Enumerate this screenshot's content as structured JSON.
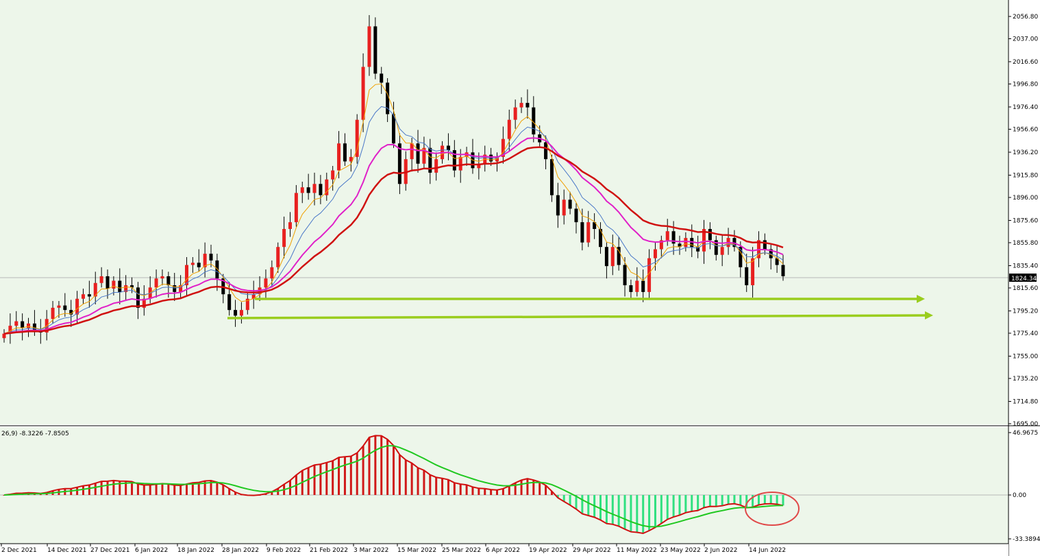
{
  "chart_data": [
    {
      "type": "candlestick",
      "ylim": [
        1695.0,
        2066.0
      ],
      "price_axis_ticks": [
        "2056.80",
        "2037.00",
        "2016.60",
        "1996.80",
        "1976.40",
        "1956.60",
        "1936.20",
        "1915.80",
        "1896.00",
        "1875.60",
        "1855.80",
        "1835.40",
        "1815.60",
        "1795.20",
        "1775.40",
        "1755.00",
        "1735.20",
        "1714.80",
        "1695.00"
      ],
      "price_axis_values": [
        2056.8,
        2037.0,
        2016.6,
        1996.8,
        1976.4,
        1956.6,
        1936.2,
        1915.8,
        1896.0,
        1875.6,
        1855.8,
        1835.4,
        1815.6,
        1795.2,
        1775.4,
        1755.0,
        1735.2,
        1714.8,
        1695.0
      ],
      "time_axis_labels": [
        "2 Dec 2021",
        "14 Dec 2021",
        "27 Dec 2021",
        "6 Jan 2022",
        "18 Jan 2022",
        "28 Jan 2022",
        "9 Feb 2022",
        "21 Feb 2022",
        "3 Mar 2022",
        "15 Mar 2022",
        "25 Mar 2022",
        "6 Apr 2022",
        "19 Apr 2022",
        "29 Apr 2022",
        "11 May 2022",
        "23 May 2022",
        "2 Jun 2022",
        "14 Jun 2022"
      ],
      "current_price": "1824.34",
      "current_price_value": 1824.34,
      "closes": [
        1775,
        1782,
        1786,
        1780,
        1784,
        1778,
        1776,
        1788,
        1798,
        1800,
        1796,
        1792,
        1806,
        1810,
        1808,
        1820,
        1826,
        1815,
        1822,
        1812,
        1818,
        1816,
        1798,
        1806,
        1816,
        1824,
        1826,
        1818,
        1812,
        1818,
        1836,
        1838,
        1834,
        1846,
        1840,
        1824,
        1810,
        1796,
        1791,
        1796,
        1806,
        1810,
        1816,
        1824,
        1834,
        1852,
        1868,
        1874,
        1900,
        1905,
        1900,
        1908,
        1898,
        1912,
        1920,
        1944,
        1928,
        1932,
        1965,
        2012,
        2048,
        2006,
        1998,
        1970,
        1944,
        1908,
        1930,
        1944,
        1926,
        1940,
        1918,
        1930,
        1942,
        1938,
        1920,
        1932,
        1936,
        1922,
        1926,
        1934,
        1928,
        1932,
        1948,
        1965,
        1976,
        1980,
        1976,
        1952,
        1945,
        1930,
        1898,
        1880,
        1894,
        1886,
        1874,
        1856,
        1874,
        1868,
        1852,
        1835,
        1852,
        1836,
        1818,
        1812,
        1822,
        1812,
        1842,
        1850,
        1858,
        1866,
        1855,
        1852,
        1860,
        1852,
        1848,
        1868,
        1858,
        1845,
        1852,
        1860,
        1852,
        1834,
        1818,
        1842,
        1858,
        1850,
        1842,
        1836,
        1826
      ]
    },
    {
      "type": "macd",
      "title_fragment": "26,9) -8.3226 -7.8505",
      "axis_ticks": [
        "46.9675",
        "0.00",
        "-33.3894"
      ],
      "axis_values": [
        46.9675,
        0.0,
        -33.3894
      ]
    }
  ]
}
